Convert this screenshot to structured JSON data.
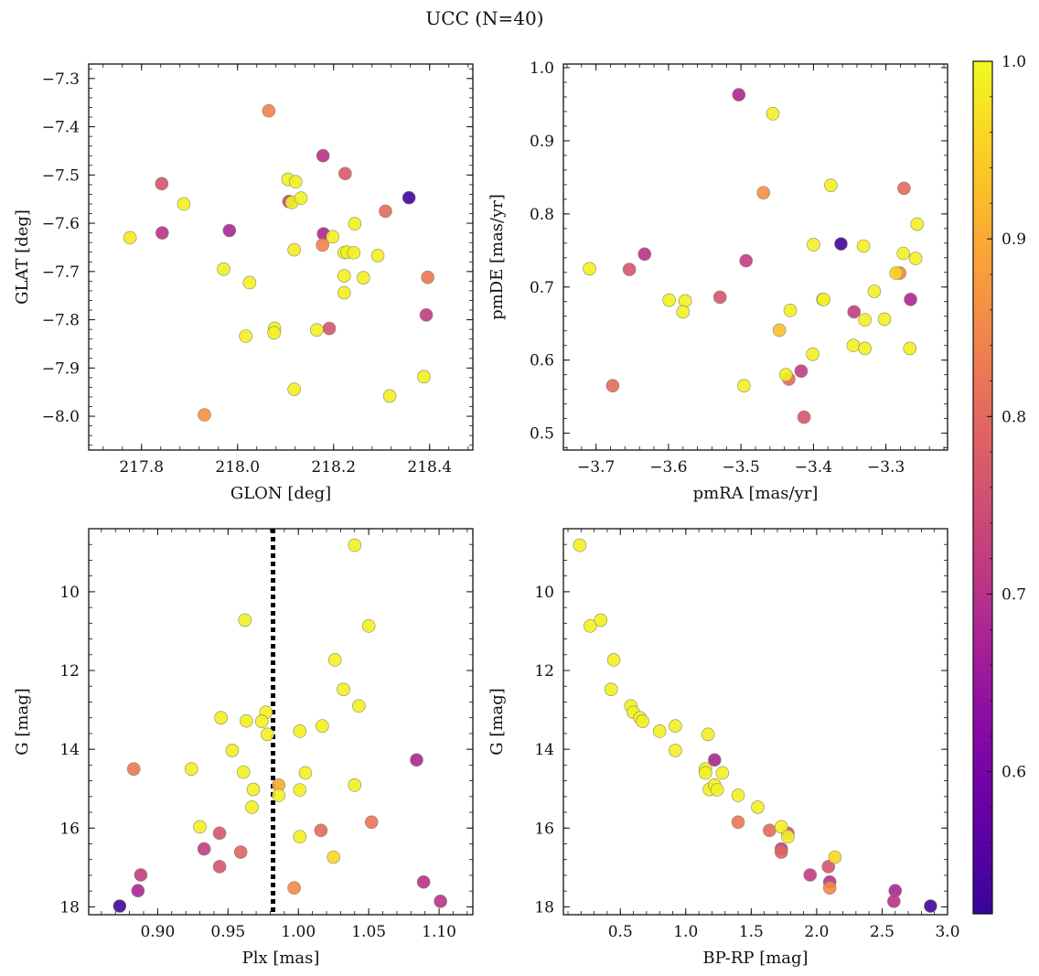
{
  "figure": {
    "title": "UCC (N=40)"
  },
  "colorbar": {
    "ticks": [
      1.0,
      0.9,
      0.8,
      0.7,
      0.6
    ],
    "tick_labels": [
      "1.0",
      "0.9",
      "0.8",
      "0.7",
      "0.6"
    ],
    "range": [
      0.52,
      1.0
    ],
    "colormap": "plasma"
  },
  "chart_data": [
    {
      "type": "scatter",
      "title": "",
      "xlabel": "GLON [deg]",
      "ylabel": "GLAT [deg]",
      "xlim": [
        217.69,
        218.49
      ],
      "ylim": [
        -8.07,
        -7.27
      ],
      "y_inverted": false,
      "xticks": [
        217.8,
        218.0,
        218.2,
        218.4
      ],
      "xtick_labels": [
        "217.8",
        "218.0",
        "218.2",
        "218.4"
      ],
      "yticks": [
        -7.3,
        -7.4,
        -7.5,
        -7.6,
        -7.7,
        -7.8,
        -7.9,
        -8.0
      ],
      "ytick_labels": [
        "−7.3",
        "−7.4",
        "−7.5",
        "−7.6",
        "−7.7",
        "−7.8",
        "−7.9",
        "−8.0"
      ],
      "points": [
        {
          "x": 218.065,
          "y": -7.367,
          "c": 0.84
        },
        {
          "x": 217.842,
          "y": -7.518,
          "c": 0.76
        },
        {
          "x": 217.888,
          "y": -7.56,
          "c": 0.99
        },
        {
          "x": 217.776,
          "y": -7.63,
          "c": 0.98
        },
        {
          "x": 217.843,
          "y": -7.62,
          "c": 0.7
        },
        {
          "x": 217.983,
          "y": -7.615,
          "c": 0.68
        },
        {
          "x": 217.971,
          "y": -7.695,
          "c": 0.99
        },
        {
          "x": 218.025,
          "y": -7.723,
          "c": 0.99
        },
        {
          "x": 218.017,
          "y": -7.834,
          "c": 0.99
        },
        {
          "x": 218.077,
          "y": -7.818,
          "c": 0.99
        },
        {
          "x": 218.076,
          "y": -7.827,
          "c": 0.99
        },
        {
          "x": 218.105,
          "y": -7.509,
          "c": 0.99
        },
        {
          "x": 218.121,
          "y": -7.514,
          "c": 0.99
        },
        {
          "x": 218.107,
          "y": -7.555,
          "c": 0.73
        },
        {
          "x": 218.113,
          "y": -7.557,
          "c": 0.99
        },
        {
          "x": 218.132,
          "y": -7.548,
          "c": 0.99
        },
        {
          "x": 218.118,
          "y": -7.655,
          "c": 0.98
        },
        {
          "x": 218.178,
          "y": -7.46,
          "c": 0.7
        },
        {
          "x": 218.224,
          "y": -7.497,
          "c": 0.77
        },
        {
          "x": 218.179,
          "y": -7.622,
          "c": 0.68
        },
        {
          "x": 218.177,
          "y": -7.645,
          "c": 0.84
        },
        {
          "x": 218.198,
          "y": -7.628,
          "c": 0.99
        },
        {
          "x": 218.222,
          "y": -7.661,
          "c": 0.99
        },
        {
          "x": 218.228,
          "y": -7.66,
          "c": 0.99
        },
        {
          "x": 218.242,
          "y": -7.661,
          "c": 0.99
        },
        {
          "x": 218.244,
          "y": -7.601,
          "c": 0.99
        },
        {
          "x": 218.222,
          "y": -7.709,
          "c": 0.99
        },
        {
          "x": 218.222,
          "y": -7.744,
          "c": 0.99
        },
        {
          "x": 218.262,
          "y": -7.713,
          "c": 0.99
        },
        {
          "x": 218.292,
          "y": -7.667,
          "c": 0.99
        },
        {
          "x": 218.308,
          "y": -7.575,
          "c": 0.8
        },
        {
          "x": 218.357,
          "y": -7.547,
          "c": 0.53
        },
        {
          "x": 218.396,
          "y": -7.712,
          "c": 0.82
        },
        {
          "x": 218.393,
          "y": -7.79,
          "c": 0.72
        },
        {
          "x": 218.165,
          "y": -7.821,
          "c": 0.99
        },
        {
          "x": 218.191,
          "y": -7.818,
          "c": 0.76
        },
        {
          "x": 218.118,
          "y": -7.944,
          "c": 0.99
        },
        {
          "x": 218.317,
          "y": -7.958,
          "c": 0.99
        },
        {
          "x": 218.388,
          "y": -7.918,
          "c": 0.99
        },
        {
          "x": 217.931,
          "y": -7.997,
          "c": 0.86
        }
      ]
    },
    {
      "type": "scatter",
      "title": "",
      "xlabel": "pmRA [mas/yr]",
      "ylabel": "pmDE [mas/yr]",
      "xlim": [
        -3.745,
        -3.215
      ],
      "ylim": [
        0.477,
        1.005
      ],
      "y_inverted": false,
      "xticks": [
        -3.7,
        -3.6,
        -3.5,
        -3.4,
        -3.3
      ],
      "xtick_labels": [
        "−3.7",
        "−3.6",
        "−3.5",
        "−3.4",
        "−3.3"
      ],
      "yticks": [
        0.5,
        0.6,
        0.7,
        0.8,
        0.9,
        1.0
      ],
      "ytick_labels": [
        "0.5",
        "0.6",
        "0.7",
        "0.8",
        "0.9",
        "1.0"
      ],
      "points": [
        {
          "x": -3.503,
          "y": 0.963,
          "c": 0.68
        },
        {
          "x": -3.456,
          "y": 0.937,
          "c": 0.99
        },
        {
          "x": -3.709,
          "y": 0.725,
          "c": 0.99
        },
        {
          "x": -3.654,
          "y": 0.724,
          "c": 0.76
        },
        {
          "x": -3.633,
          "y": 0.745,
          "c": 0.7
        },
        {
          "x": -3.599,
          "y": 0.682,
          "c": 0.99
        },
        {
          "x": -3.577,
          "y": 0.681,
          "c": 0.99
        },
        {
          "x": -3.58,
          "y": 0.666,
          "c": 0.99
        },
        {
          "x": -3.529,
          "y": 0.686,
          "c": 0.76
        },
        {
          "x": -3.493,
          "y": 0.736,
          "c": 0.72
        },
        {
          "x": -3.469,
          "y": 0.829,
          "c": 0.86
        },
        {
          "x": -3.677,
          "y": 0.565,
          "c": 0.8
        },
        {
          "x": -3.496,
          "y": 0.565,
          "c": 0.99
        },
        {
          "x": -3.447,
          "y": 0.641,
          "c": 0.93
        },
        {
          "x": -3.432,
          "y": 0.668,
          "c": 0.99
        },
        {
          "x": -3.438,
          "y": 0.58,
          "c": 0.99
        },
        {
          "x": -3.434,
          "y": 0.574,
          "c": 0.8
        },
        {
          "x": -3.417,
          "y": 0.585,
          "c": 0.72
        },
        {
          "x": -3.413,
          "y": 0.522,
          "c": 0.76
        },
        {
          "x": -3.401,
          "y": 0.608,
          "c": 0.99
        },
        {
          "x": -3.4,
          "y": 0.758,
          "c": 0.99
        },
        {
          "x": -3.387,
          "y": 0.683,
          "c": 0.99
        },
        {
          "x": -3.386,
          "y": 0.683,
          "c": 0.99
        },
        {
          "x": -3.376,
          "y": 0.839,
          "c": 0.99
        },
        {
          "x": -3.362,
          "y": 0.759,
          "c": 0.53
        },
        {
          "x": -3.344,
          "y": 0.666,
          "c": 0.72
        },
        {
          "x": -3.345,
          "y": 0.62,
          "c": 0.99
        },
        {
          "x": -3.331,
          "y": 0.756,
          "c": 0.99
        },
        {
          "x": -3.329,
          "y": 0.655,
          "c": 0.99
        },
        {
          "x": -3.329,
          "y": 0.616,
          "c": 0.99
        },
        {
          "x": -3.316,
          "y": 0.694,
          "c": 0.99
        },
        {
          "x": -3.302,
          "y": 0.656,
          "c": 0.99
        },
        {
          "x": -3.286,
          "y": 0.719,
          "c": 0.95
        },
        {
          "x": -3.281,
          "y": 0.719,
          "c": 0.85
        },
        {
          "x": -3.276,
          "y": 0.746,
          "c": 0.99
        },
        {
          "x": -3.275,
          "y": 0.835,
          "c": 0.8
        },
        {
          "x": -3.266,
          "y": 0.683,
          "c": 0.68
        },
        {
          "x": -3.267,
          "y": 0.616,
          "c": 0.99
        },
        {
          "x": -3.259,
          "y": 0.739,
          "c": 0.99
        },
        {
          "x": -3.257,
          "y": 0.786,
          "c": 0.99
        }
      ]
    },
    {
      "type": "scatter",
      "title": "",
      "xlabel": "Plx [mas]",
      "ylabel": "G [mag]",
      "xlim": [
        0.851,
        1.124
      ],
      "ylim": [
        8.4,
        18.2
      ],
      "y_inverted": true,
      "xticks": [
        0.9,
        0.95,
        1.0,
        1.05,
        1.1
      ],
      "xtick_labels": [
        "0.90",
        "0.95",
        "1.00",
        "1.05",
        "1.10"
      ],
      "yticks": [
        10,
        12,
        14,
        16,
        18
      ],
      "ytick_labels": [
        "10",
        "12",
        "14",
        "16",
        "18"
      ],
      "vline": {
        "x": 0.982,
        "style": "dotted"
      },
      "points": [
        {
          "x": 1.04,
          "y": 8.82,
          "c": 0.99
        },
        {
          "x": 0.962,
          "y": 10.72,
          "c": 0.99
        },
        {
          "x": 1.05,
          "y": 10.87,
          "c": 0.99
        },
        {
          "x": 1.026,
          "y": 11.73,
          "c": 0.99
        },
        {
          "x": 1.032,
          "y": 12.48,
          "c": 0.99
        },
        {
          "x": 1.043,
          "y": 12.9,
          "c": 0.99
        },
        {
          "x": 0.977,
          "y": 13.06,
          "c": 0.99
        },
        {
          "x": 0.974,
          "y": 13.29,
          "c": 0.99
        },
        {
          "x": 0.963,
          "y": 13.28,
          "c": 0.99
        },
        {
          "x": 0.945,
          "y": 13.2,
          "c": 0.99
        },
        {
          "x": 0.978,
          "y": 13.62,
          "c": 0.99
        },
        {
          "x": 1.017,
          "y": 13.41,
          "c": 0.99
        },
        {
          "x": 1.001,
          "y": 13.54,
          "c": 0.99
        },
        {
          "x": 0.953,
          "y": 14.03,
          "c": 0.99
        },
        {
          "x": 0.924,
          "y": 14.5,
          "c": 0.99
        },
        {
          "x": 0.883,
          "y": 14.5,
          "c": 0.82
        },
        {
          "x": 0.961,
          "y": 14.58,
          "c": 0.99
        },
        {
          "x": 1.005,
          "y": 14.6,
          "c": 0.99
        },
        {
          "x": 1.084,
          "y": 14.27,
          "c": 0.68
        },
        {
          "x": 0.986,
          "y": 14.91,
          "c": 0.9
        },
        {
          "x": 0.968,
          "y": 15.02,
          "c": 0.99
        },
        {
          "x": 0.986,
          "y": 15.17,
          "c": 0.99
        },
        {
          "x": 1.001,
          "y": 15.03,
          "c": 0.99
        },
        {
          "x": 1.04,
          "y": 14.91,
          "c": 0.99
        },
        {
          "x": 0.967,
          "y": 15.47,
          "c": 0.99
        },
        {
          "x": 1.052,
          "y": 15.85,
          "c": 0.82
        },
        {
          "x": 0.93,
          "y": 15.97,
          "c": 0.99
        },
        {
          "x": 0.944,
          "y": 16.13,
          "c": 0.76
        },
        {
          "x": 1.016,
          "y": 16.06,
          "c": 0.8
        },
        {
          "x": 1.001,
          "y": 16.22,
          "c": 0.99
        },
        {
          "x": 0.933,
          "y": 16.53,
          "c": 0.72
        },
        {
          "x": 0.959,
          "y": 16.61,
          "c": 0.79
        },
        {
          "x": 1.025,
          "y": 16.74,
          "c": 0.96
        },
        {
          "x": 0.944,
          "y": 16.98,
          "c": 0.76
        },
        {
          "x": 0.888,
          "y": 17.19,
          "c": 0.72
        },
        {
          "x": 0.997,
          "y": 17.52,
          "c": 0.85
        },
        {
          "x": 1.089,
          "y": 17.37,
          "c": 0.7
        },
        {
          "x": 0.886,
          "y": 17.59,
          "c": 0.68
        },
        {
          "x": 0.873,
          "y": 17.98,
          "c": 0.53
        },
        {
          "x": 1.101,
          "y": 17.86,
          "c": 0.7
        }
      ]
    },
    {
      "type": "scatter",
      "title": "",
      "xlabel": "BP-RP [mag]",
      "ylabel": "G [mag]",
      "xlim": [
        0.065,
        3.0
      ],
      "ylim": [
        8.4,
        18.2
      ],
      "y_inverted": true,
      "xticks": [
        0.5,
        1.0,
        1.5,
        2.0,
        2.5,
        3.0
      ],
      "xtick_labels": [
        "0.5",
        "1.0",
        "1.5",
        "2.0",
        "2.5",
        "3.0"
      ],
      "yticks": [
        10,
        12,
        14,
        16,
        18
      ],
      "ytick_labels": [
        "10",
        "12",
        "14",
        "16",
        "18"
      ],
      "points": [
        {
          "x": 0.19,
          "y": 8.82,
          "c": 0.99
        },
        {
          "x": 0.27,
          "y": 10.87,
          "c": 0.99
        },
        {
          "x": 0.35,
          "y": 10.72,
          "c": 0.99
        },
        {
          "x": 0.45,
          "y": 11.73,
          "c": 0.99
        },
        {
          "x": 0.43,
          "y": 12.48,
          "c": 0.99
        },
        {
          "x": 0.58,
          "y": 12.9,
          "c": 0.99
        },
        {
          "x": 0.6,
          "y": 13.06,
          "c": 0.99
        },
        {
          "x": 0.65,
          "y": 13.2,
          "c": 0.99
        },
        {
          "x": 0.67,
          "y": 13.29,
          "c": 0.99
        },
        {
          "x": 0.8,
          "y": 13.54,
          "c": 0.99
        },
        {
          "x": 0.92,
          "y": 13.41,
          "c": 0.99
        },
        {
          "x": 0.92,
          "y": 14.03,
          "c": 0.99
        },
        {
          "x": 1.17,
          "y": 13.62,
          "c": 0.99
        },
        {
          "x": 1.15,
          "y": 14.5,
          "c": 0.99
        },
        {
          "x": 1.15,
          "y": 14.6,
          "c": 0.99
        },
        {
          "x": 1.22,
          "y": 14.27,
          "c": 0.68
        },
        {
          "x": 1.28,
          "y": 14.6,
          "c": 0.99
        },
        {
          "x": 1.18,
          "y": 15.02,
          "c": 0.99
        },
        {
          "x": 1.22,
          "y": 14.91,
          "c": 0.99
        },
        {
          "x": 1.24,
          "y": 15.03,
          "c": 0.99
        },
        {
          "x": 1.4,
          "y": 15.17,
          "c": 0.99
        },
        {
          "x": 1.55,
          "y": 15.47,
          "c": 0.99
        },
        {
          "x": 1.4,
          "y": 15.85,
          "c": 0.82
        },
        {
          "x": 1.64,
          "y": 16.06,
          "c": 0.8
        },
        {
          "x": 1.73,
          "y": 15.97,
          "c": 0.99
        },
        {
          "x": 1.78,
          "y": 16.13,
          "c": 0.76
        },
        {
          "x": 1.78,
          "y": 16.22,
          "c": 0.99
        },
        {
          "x": 1.73,
          "y": 16.53,
          "c": 0.72
        },
        {
          "x": 1.73,
          "y": 16.61,
          "c": 0.79
        },
        {
          "x": 2.14,
          "y": 16.74,
          "c": 0.96
        },
        {
          "x": 1.95,
          "y": 17.19,
          "c": 0.72
        },
        {
          "x": 2.09,
          "y": 16.98,
          "c": 0.76
        },
        {
          "x": 2.1,
          "y": 17.37,
          "c": 0.7
        },
        {
          "x": 2.1,
          "y": 17.52,
          "c": 0.85
        },
        {
          "x": 2.6,
          "y": 17.59,
          "c": 0.68
        },
        {
          "x": 2.59,
          "y": 17.86,
          "c": 0.7
        },
        {
          "x": 2.87,
          "y": 17.98,
          "c": 0.53
        }
      ]
    }
  ]
}
